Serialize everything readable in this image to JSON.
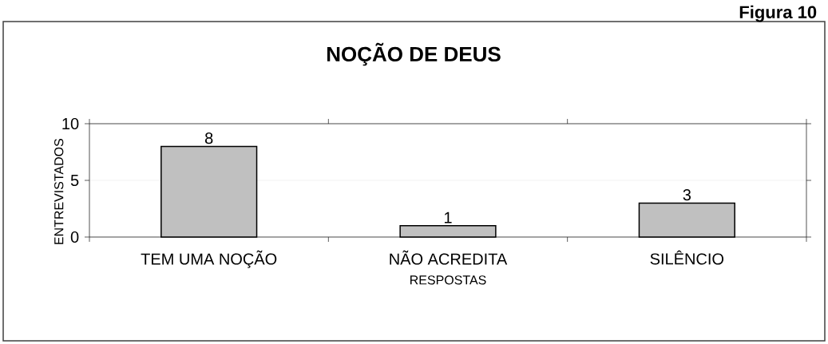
{
  "chart_data": {
    "type": "bar",
    "title": "NOÇÃO DE DEUS",
    "xlabel": "RESPOSTAS",
    "ylabel": "ENTREVISTADOS",
    "annotations": [
      "Figura 10"
    ],
    "categories": [
      "TEM UMA NOÇÃO",
      "NÃO ACREDITA",
      "SILÊNCIO"
    ],
    "values": [
      8,
      1,
      3
    ],
    "color": "#c0c0c0",
    "ylim": [
      0,
      10
    ],
    "yticks": [
      0,
      5,
      10
    ],
    "grid": "y",
    "data_labels": true
  }
}
